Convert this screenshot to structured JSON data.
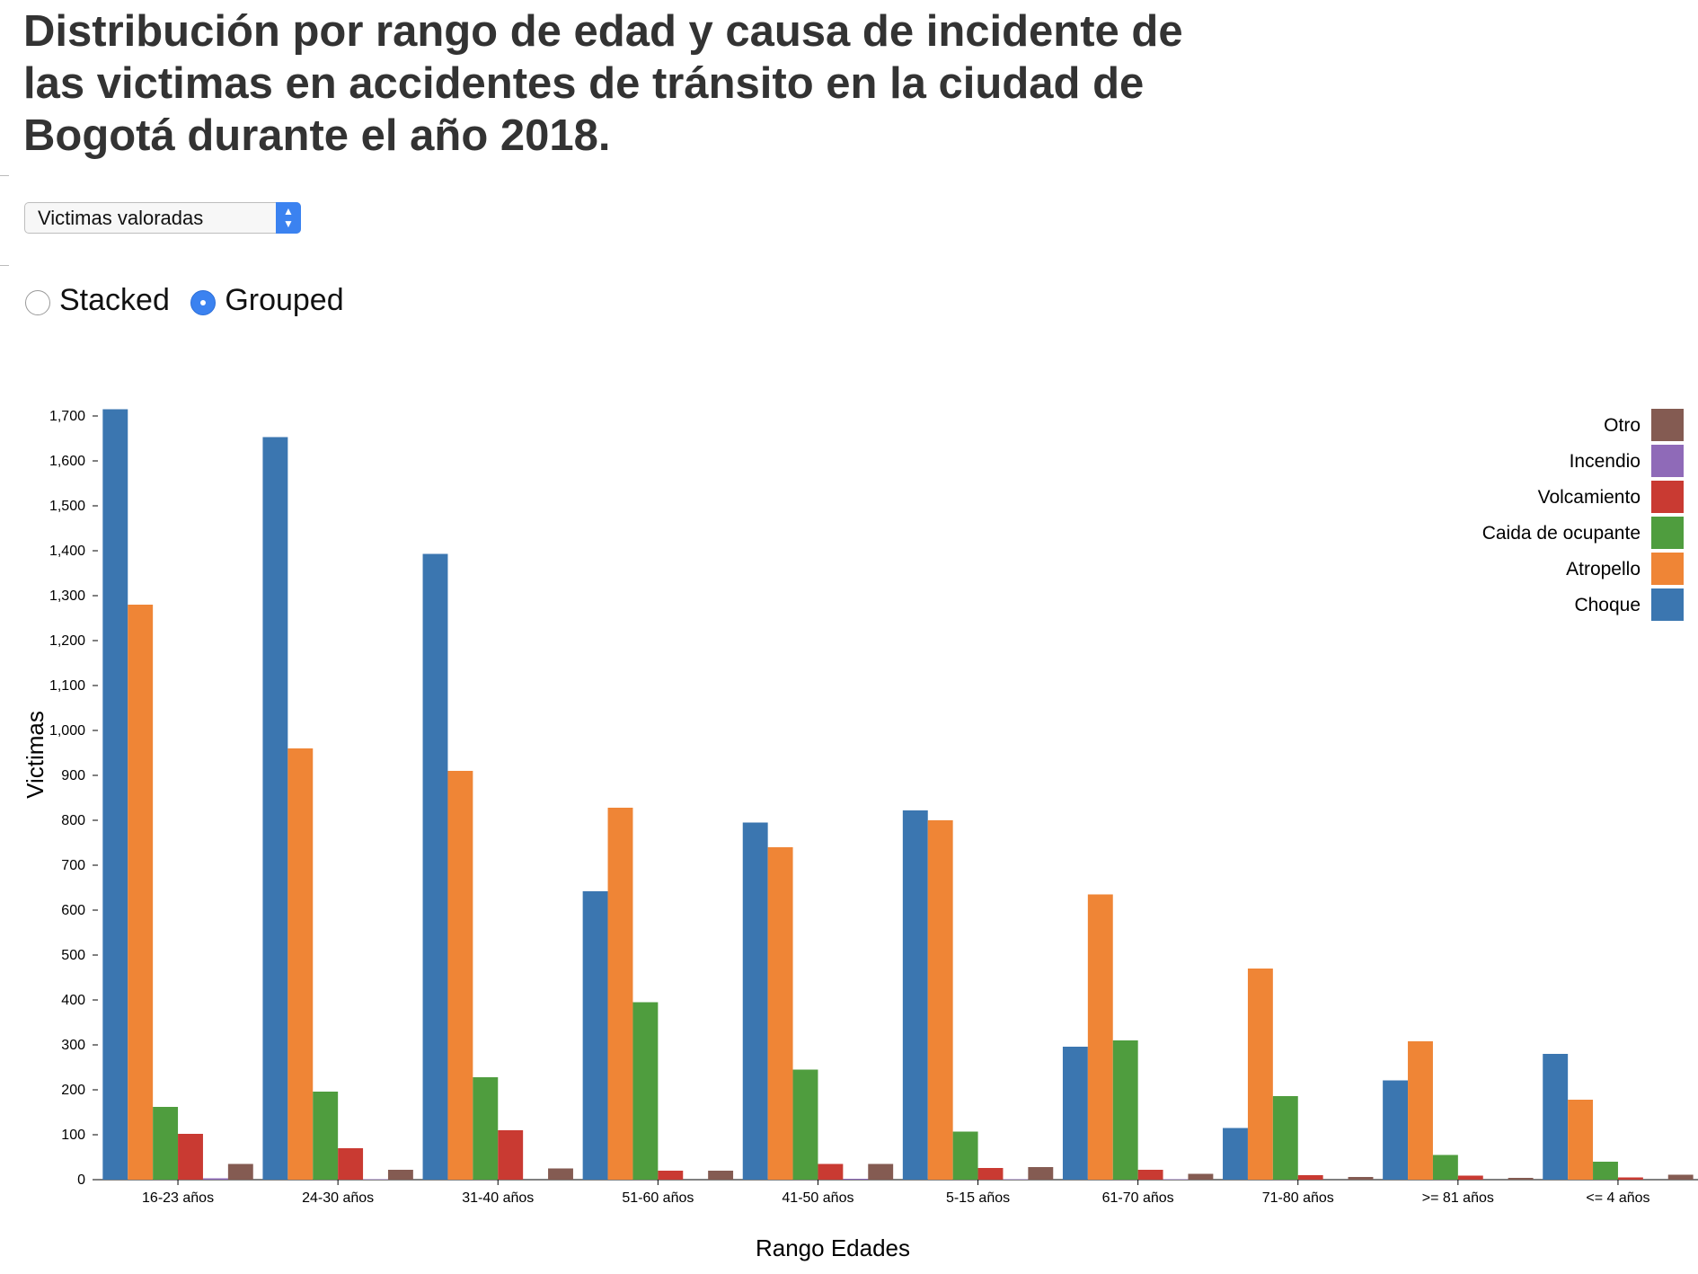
{
  "page_title": "Distribución por rango de edad y causa de incidente de las victimas en accidentes de tránsito en la ciudad de Bogotá durante el año 2018.",
  "controls": {
    "select_value": "Victimas valoradas",
    "radio_stacked": "Stacked",
    "radio_grouped": "Grouped",
    "selected_mode": "Grouped"
  },
  "chart_data": {
    "type": "bar",
    "mode": "grouped",
    "xlabel": "Rango Edades",
    "ylabel": "Victimas",
    "ylim": [
      0,
      1720
    ],
    "yticks": [
      0,
      100,
      200,
      300,
      400,
      500,
      600,
      700,
      800,
      900,
      1000,
      1100,
      1200,
      1300,
      1400,
      1500,
      1600,
      1700
    ],
    "legend_position": "top-right",
    "grid": false,
    "categories": [
      "16-23 años",
      "24-30 años",
      "31-40 años",
      "51-60 años",
      "41-50 años",
      "5-15 años",
      "61-70 años",
      "71-80 años",
      ">= 81 años",
      "<= 4 años"
    ],
    "series": [
      {
        "name": "Choque",
        "color": "#3b76b0",
        "values": [
          1715,
          1653,
          1393,
          642,
          795,
          822,
          296,
          115,
          221,
          280
        ]
      },
      {
        "name": "Atropello",
        "color": "#ef8536",
        "values": [
          1280,
          960,
          910,
          828,
          740,
          800,
          635,
          470,
          308,
          178
        ]
      },
      {
        "name": "Caida de ocupante",
        "color": "#4f9d3e",
        "values": [
          162,
          196,
          228,
          395,
          245,
          107,
          310,
          186,
          55,
          40
        ]
      },
      {
        "name": "Volcamiento",
        "color": "#c93a32",
        "values": [
          102,
          70,
          110,
          20,
          35,
          26,
          22,
          10,
          9,
          5
        ]
      },
      {
        "name": "Incendio",
        "color": "#8f6ab8",
        "values": [
          3,
          1,
          0,
          0,
          2,
          1,
          1,
          0,
          0,
          0
        ]
      },
      {
        "name": "Otro",
        "color": "#845b52",
        "values": [
          35,
          22,
          25,
          20,
          35,
          28,
          13,
          6,
          4,
          11
        ]
      }
    ]
  }
}
